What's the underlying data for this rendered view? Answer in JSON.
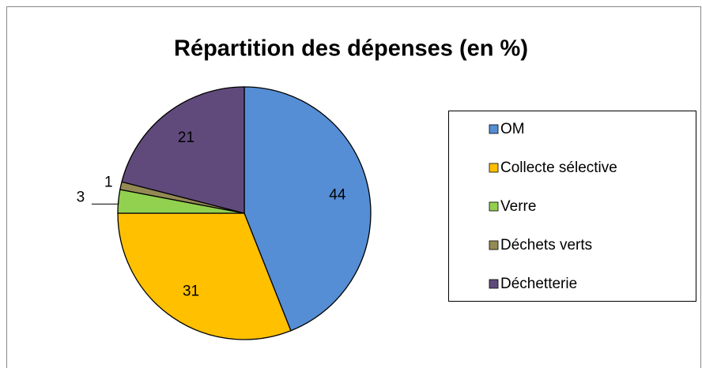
{
  "chart_data": {
    "type": "pie",
    "title": "Répartition des dépenses (en %)",
    "categories": [
      "OM",
      "Collecte sélective",
      "Verre",
      "Déchets verts",
      "Déchetterie"
    ],
    "values": [
      44,
      31,
      3,
      1,
      21
    ],
    "colors": [
      "#558ed5",
      "#ffc000",
      "#92d050",
      "#948a54",
      "#604a7b"
    ],
    "legend": "right"
  }
}
